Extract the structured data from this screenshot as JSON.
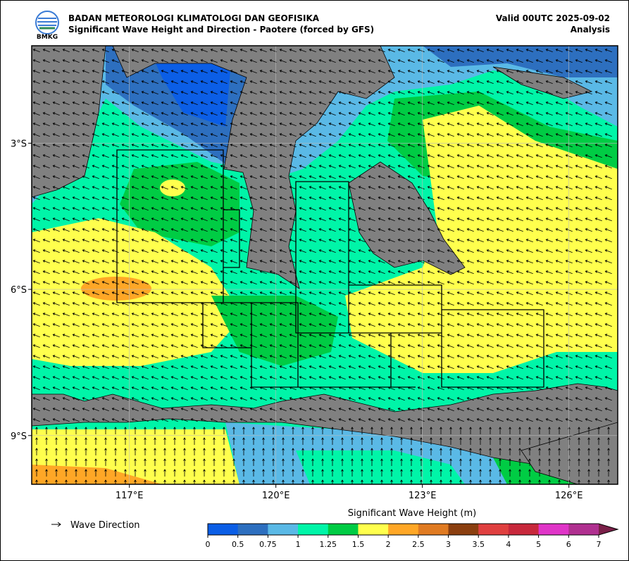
{
  "header": {
    "agency": "BADAN METEOROLOGI KLIMATOLOGI DAN GEOFISIKA",
    "title": "Significant Wave Height and Direction - Paotere (forced by GFS)",
    "valid": "Valid 00UTC 2025-09-02",
    "analysis": "Analysis",
    "logo_text": "BMKG"
  },
  "map": {
    "xlim": [
      115,
      127
    ],
    "ylim": [
      -10,
      -1
    ],
    "lon_ticks": [
      {
        "value": 117,
        "label": "117°E"
      },
      {
        "value": 120,
        "label": "120°E"
      },
      {
        "value": 123,
        "label": "123°E"
      },
      {
        "value": 126,
        "label": "126°E"
      }
    ],
    "lat_ticks": [
      {
        "value": -3,
        "label": "3°S"
      },
      {
        "value": -6,
        "label": "6°S"
      },
      {
        "value": -9,
        "label": "9°S"
      }
    ]
  },
  "legend": {
    "label": "Wave Direction"
  },
  "colorbar": {
    "title": "Significant Wave Height (m)",
    "ticks": [
      0,
      0.5,
      0.75,
      1,
      1.25,
      1.5,
      2,
      2.5,
      3,
      3.5,
      4,
      5,
      6,
      7
    ],
    "colors": [
      "#0b5ee6",
      "#2d6fbf",
      "#5ab9e6",
      "#00f5a8",
      "#00cc44",
      "#ffff4d",
      "#ffa726",
      "#e07b22",
      "#8b3f10",
      "#e04040",
      "#c8283c",
      "#e035c8",
      "#b03090",
      "#7a2048"
    ]
  }
}
